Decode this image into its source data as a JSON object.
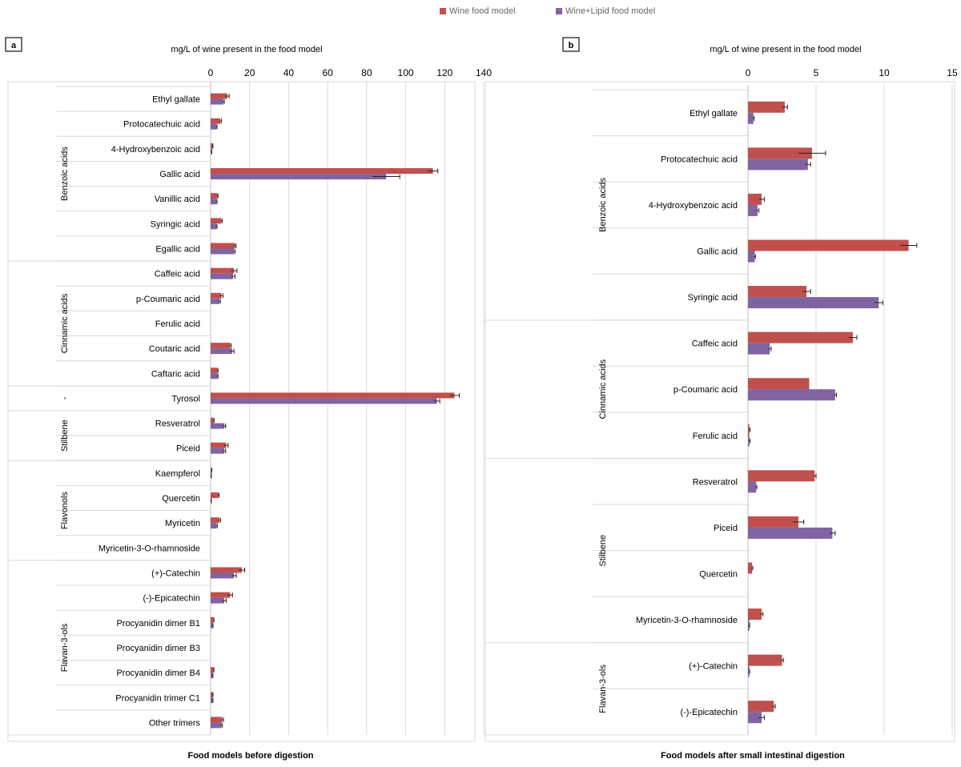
{
  "legend": {
    "wine": "Wine food model",
    "lipid": "Wine+Lipid food model"
  },
  "colors": {
    "wine": "#c0504d",
    "lipid": "#8064a2",
    "error": "#222222",
    "grid": "#d9d9d9"
  },
  "chart_data": [
    {
      "type": "bar",
      "orientation": "horizontal",
      "panel_label": "a",
      "title": "mg/L of wine present in the food model",
      "xlabel": "Food models before digestion",
      "xlim": [
        0,
        140
      ],
      "xticks": [
        0,
        20,
        40,
        60,
        80,
        100,
        120,
        140
      ],
      "categories": [
        "Ethyl gallate",
        "Protocatechuic acid",
        "4-Hydroxybenzoic acid",
        "Gallic acid",
        "Vanillic acid",
        "Syringic acid",
        "Egallic acid",
        "Caffeic acid",
        "p-Coumaric acid",
        "Ferulic acid",
        "Coutaric acid",
        "Caftaric acid",
        "Tyrosol",
        "Resveratrol",
        "Piceid",
        "Kaempferol",
        "Quercetin",
        "Myricetin",
        "Myricetin-3-O-rhamnoside",
        "(+)-Catechin",
        "(-)-Epicatechin",
        "Procyanidin dimer B1",
        "Procyanidin dimer B3",
        "Procyanidin dimer B4",
        "Procyanidin trimer C1",
        "Other trimers"
      ],
      "groups": [
        {
          "label": "Benzoic acids",
          "start": 0,
          "end": 6
        },
        {
          "label": "Cinnamic acids",
          "start": 7,
          "end": 11
        },
        {
          "label": "-",
          "start": 12,
          "end": 12
        },
        {
          "label": "Stilbene",
          "start": 13,
          "end": 14
        },
        {
          "label": "Flavonols",
          "start": 15,
          "end": 18
        },
        {
          "label": "Flavan-3-ols",
          "start": 19,
          "end": 25
        }
      ],
      "series": [
        {
          "name": "Wine food model",
          "values": [
            8.5,
            5,
            1,
            114,
            3.5,
            5.5,
            12.5,
            12,
            5.5,
            0,
            10,
            3.5,
            125,
            1.5,
            8,
            0.5,
            4,
            4.5,
            0,
            16,
            10,
            1.5,
            0,
            1.5,
            1,
            6
          ],
          "errors": [
            1,
            0.5,
            0.2,
            2.5,
            0.3,
            0.5,
            0.5,
            1.5,
            0.8,
            0,
            0.5,
            0.3,
            2.5,
            0.3,
            1,
            0.1,
            0.3,
            0.6,
            0,
            1.5,
            1.2,
            0.2,
            0,
            0.2,
            0.2,
            0.6
          ]
        },
        {
          "name": "Wine+Lipid food model",
          "values": [
            6.5,
            3,
            0.5,
            90,
            3,
            3,
            12,
            11.5,
            4.5,
            0,
            11,
            3.5,
            116,
            7,
            7,
            0.3,
            0.3,
            3,
            0,
            12,
            7,
            1,
            0,
            1,
            1,
            5.5
          ],
          "errors": [
            0.5,
            0.3,
            0.1,
            7,
            0.3,
            0.3,
            0.5,
            1,
            0.5,
            0,
            1,
            0.3,
            1.5,
            0.7,
            0.7,
            0.1,
            0.1,
            0.4,
            0,
            1.2,
            1,
            0.2,
            0,
            0.2,
            0.2,
            0.5
          ]
        }
      ]
    },
    {
      "type": "bar",
      "orientation": "horizontal",
      "panel_label": "b",
      "title": "mg/L of wine present in the food model",
      "xlabel": "Food models after small intestinal digestion",
      "xlim": [
        0,
        15
      ],
      "xticks": [
        0,
        5,
        10,
        15
      ],
      "categories": [
        "Ethyl gallate",
        "Protocatechuic acid",
        "4-Hydroxybenzoic acid",
        "Gallic acid",
        "Syringic acid",
        "Caffeic acid",
        "p-Coumaric acid",
        "Ferulic acid",
        "Resveratrol",
        "Piceid",
        "Quercetin",
        "Myricetin-3-O-rhamnoside",
        "(+)-Catechin",
        "(-)-Epicatechin"
      ],
      "groups": [
        {
          "label": "Benzoic acids",
          "start": 0,
          "end": 4
        },
        {
          "label": "Cinnamic acids",
          "start": 5,
          "end": 7
        },
        {
          "label": "Stilbene",
          "start": 8,
          "end": 11
        },
        {
          "label": "Flavan-3-ols",
          "start": 12,
          "end": 13
        }
      ],
      "series": [
        {
          "name": "Wine food model",
          "values": [
            2.7,
            4.7,
            1,
            11.8,
            4.3,
            7.7,
            4.5,
            0.1,
            4.9,
            3.7,
            0.3,
            1,
            2.5,
            1.9
          ],
          "errors": [
            0.2,
            1,
            0.2,
            0.6,
            0.3,
            0.3,
            0,
            0.05,
            0.1,
            0.4,
            0.05,
            0.1,
            0.1,
            0.1
          ]
        },
        {
          "name": "Wine+Lipid food model",
          "values": [
            0.4,
            4.4,
            0.7,
            0.5,
            9.6,
            1.6,
            6.4,
            0.1,
            0.6,
            6.2,
            0,
            0.1,
            0.1,
            1
          ],
          "errors": [
            0.05,
            0.2,
            0.1,
            0.05,
            0.3,
            0.1,
            0.1,
            0.05,
            0.05,
            0.2,
            0,
            0.02,
            0.02,
            0.2
          ]
        }
      ]
    }
  ]
}
